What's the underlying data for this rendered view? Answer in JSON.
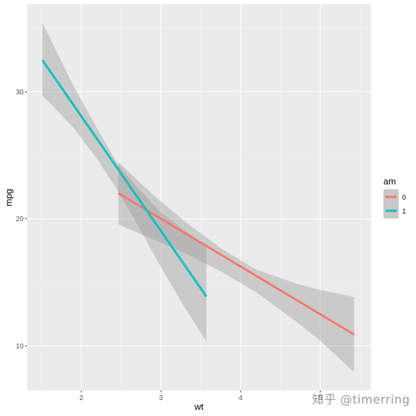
{
  "chart_data": {
    "type": "line",
    "title": "",
    "xlabel": "wt",
    "ylabel": "mpg",
    "xlim": [
      1.32,
      5.635
    ],
    "ylim": [
      6.5,
      36.9
    ],
    "x_ticks": [
      2,
      3,
      4,
      5
    ],
    "y_ticks": [
      10,
      20,
      30
    ],
    "x_minor": [
      1.5,
      2.5,
      3.5,
      4.5,
      5.5
    ],
    "y_minor": [
      15,
      25,
      35
    ],
    "grid": true,
    "legend": {
      "title": "am",
      "position": "right",
      "entries": [
        "0",
        "1"
      ]
    },
    "series": [
      {
        "name": "0",
        "color": "#F8766D",
        "method": "lm",
        "x": [
          2.465,
          5.424
        ],
        "y": [
          22.02,
          10.89
        ],
        "ribbon": {
          "x": [
            2.465,
            2.9,
            3.3,
            3.77,
            4.2,
            4.7,
            5.0,
            5.424
          ],
          "lower": [
            19.56,
            18.4,
            17.3,
            15.8,
            14.2,
            11.9,
            10.4,
            7.94
          ],
          "upper": [
            24.47,
            21.9,
            19.8,
            17.6,
            16.0,
            14.9,
            14.4,
            13.84
          ]
        }
      },
      {
        "name": "1",
        "color": "#00BFC4",
        "method": "lm",
        "x": [
          1.513,
          3.57
        ],
        "y": [
          32.49,
          13.89
        ],
        "ribbon": {
          "x": [
            1.513,
            1.9,
            2.2,
            2.45,
            2.7,
            3.0,
            3.3,
            3.57
          ],
          "lower": [
            29.71,
            27.2,
            24.7,
            22.3,
            19.6,
            16.2,
            13.0,
            10.34
          ],
          "upper": [
            35.44,
            30.5,
            27.1,
            24.4,
            22.5,
            20.5,
            19.1,
            17.8
          ]
        }
      }
    ]
  },
  "watermark": "知乎 @timerring",
  "colors": {
    "panel_bg": "#EBEBEB",
    "grid_major": "#FFFFFF",
    "ribbon": "#999999"
  }
}
